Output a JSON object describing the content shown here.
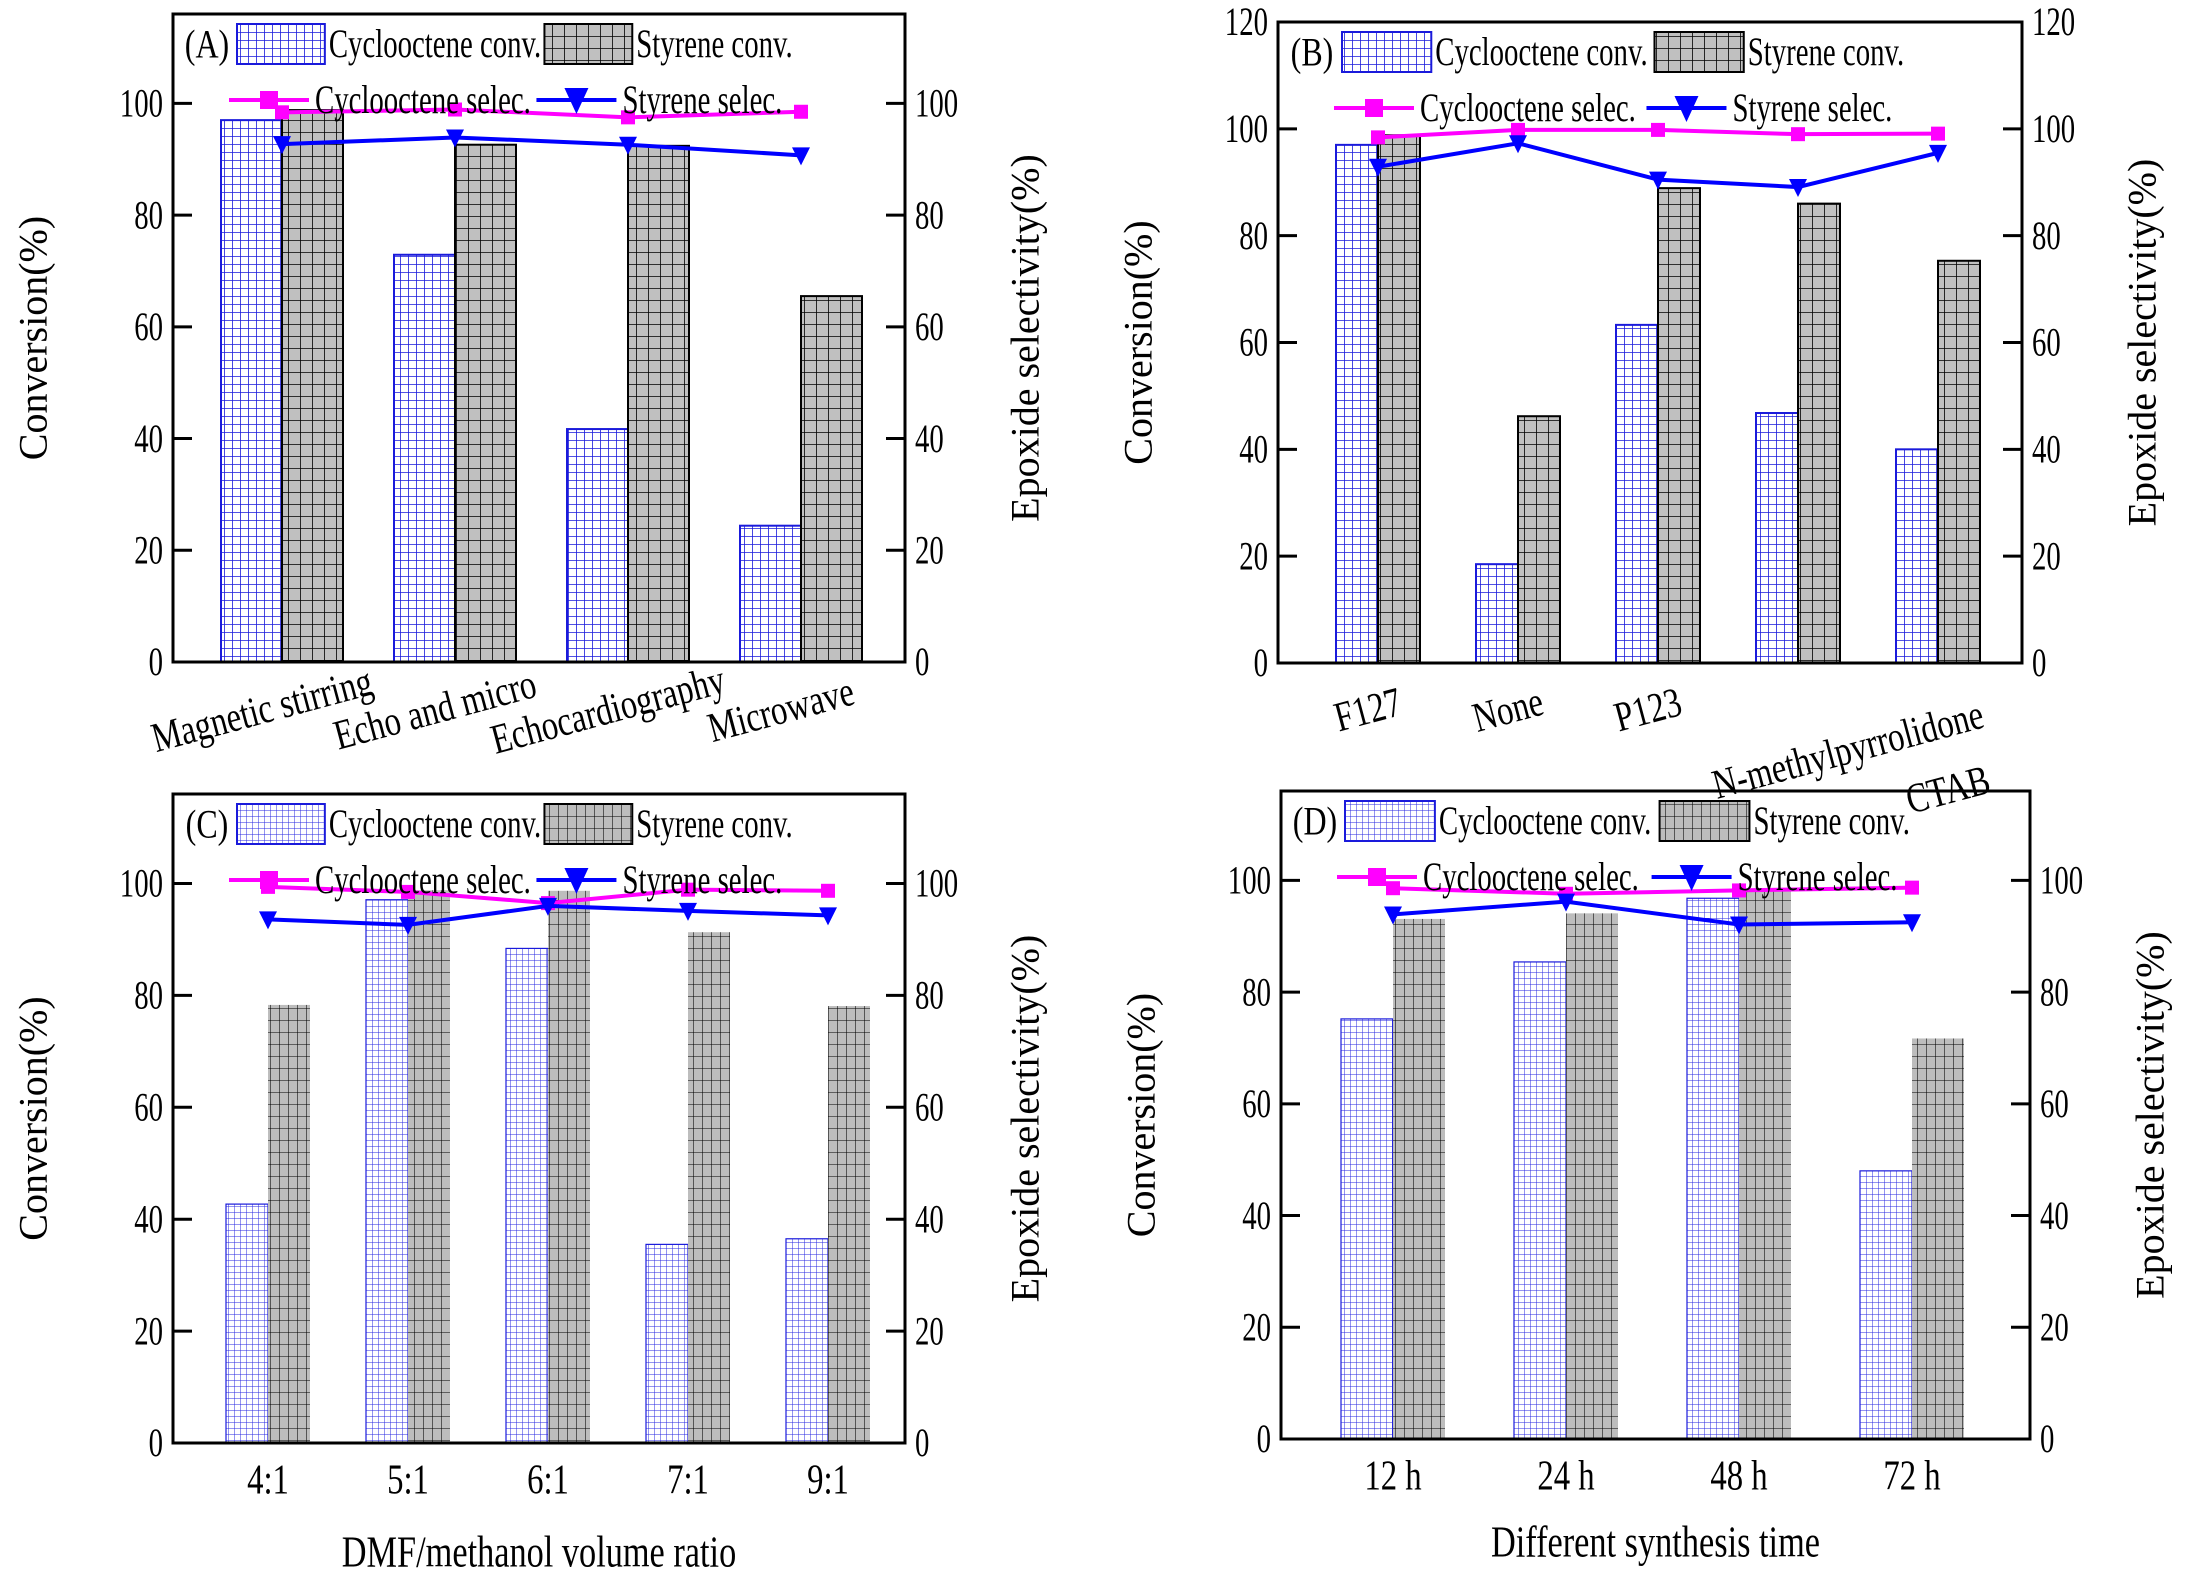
{
  "legend": {
    "cyclo_conv": "Cyclooctene conv.",
    "styrene_conv": "Styrene conv.",
    "cyclo_selec": "Cyclooctene selec.",
    "styrene_selec": "Styrene selec."
  },
  "colors": {
    "cyclo_conv_grid": "#1a1adb",
    "cyclo_conv_fill": "#ffffff",
    "styrene_conv_grid": "#000000",
    "styrene_conv_fill": "#c0c0c0",
    "cyclo_selec": "#ff00ff",
    "styrene_selec": "#0000ff"
  },
  "chart_data": [
    {
      "panel": "(A)",
      "type": "bar",
      "title": "",
      "xlabel": "",
      "ylabel": "Conversion(%)",
      "y2label": "Epoxide selectivity(%)",
      "ylim": [
        0,
        116
      ],
      "y2lim": [
        0,
        116
      ],
      "yticks": [
        0,
        20,
        40,
        60,
        80,
        100
      ],
      "y2ticks": [
        0,
        20,
        40,
        60,
        80,
        100
      ],
      "legend": "top",
      "grid": false,
      "categories": [
        "Magnetic stirring",
        "Echo and micro",
        "Echocardiography",
        "Microwave"
      ],
      "categories_rotated": true,
      "series": [
        {
          "name": "Cyclooctene conv.",
          "kind": "bar",
          "axis": "left",
          "values": [
            97.0,
            72.9,
            41.7,
            24.4
          ]
        },
        {
          "name": "Styrene conv.",
          "kind": "bar",
          "axis": "left",
          "values": [
            98.8,
            92.6,
            92.4,
            65.5
          ]
        },
        {
          "name": "Cyclooctene selec.",
          "kind": "line",
          "marker": "square",
          "axis": "right",
          "values": [
            98.4,
            98.9,
            97.5,
            98.5
          ]
        },
        {
          "name": "Styrene selec.",
          "kind": "line",
          "marker": "triangle-down",
          "axis": "right",
          "values": [
            92.7,
            93.9,
            92.6,
            90.7
          ]
        }
      ]
    },
    {
      "panel": "(B)",
      "type": "bar",
      "title": "",
      "xlabel": "",
      "ylabel": "Conversion(%)",
      "y2label": "Epoxide selectivity(%)",
      "ylim": [
        0,
        120
      ],
      "y2lim": [
        0,
        120
      ],
      "yticks": [
        0,
        20,
        40,
        60,
        80,
        100,
        120
      ],
      "y2ticks": [
        0,
        20,
        40,
        60,
        80,
        100,
        120
      ],
      "legend": "top",
      "grid": false,
      "categories": [
        "F127",
        "None",
        "P123",
        "N-methylpyrrolidone",
        "CTAB"
      ],
      "categories_rotated": true,
      "series": [
        {
          "name": "Cyclooctene conv.",
          "kind": "bar",
          "axis": "left",
          "values": [
            97.0,
            18.5,
            63.3,
            46.8,
            40.0
          ]
        },
        {
          "name": "Styrene conv.",
          "kind": "bar",
          "axis": "left",
          "values": [
            98.8,
            46.2,
            88.9,
            86.0,
            75.3
          ]
        },
        {
          "name": "Cyclooctene selec.",
          "kind": "line",
          "marker": "square",
          "axis": "right",
          "values": [
            98.4,
            99.8,
            99.8,
            99.0,
            99.1
          ]
        },
        {
          "name": "Styrene selec.",
          "kind": "line",
          "marker": "triangle-down",
          "axis": "right",
          "values": [
            92.9,
            97.3,
            90.5,
            89.1,
            95.5
          ]
        }
      ]
    },
    {
      "panel": "(C)",
      "type": "bar",
      "title": "",
      "xlabel": "DMF/methanol volume ratio",
      "ylabel": "Conversion(%)",
      "y2label": "Epoxide selectivity(%)",
      "ylim": [
        0,
        116
      ],
      "y2lim": [
        0,
        116
      ],
      "yticks": [
        0,
        20,
        40,
        60,
        80,
        100
      ],
      "y2ticks": [
        0,
        20,
        40,
        60,
        80,
        100
      ],
      "legend": "top",
      "grid": false,
      "categories": [
        "4:1",
        "5:1",
        "6:1",
        "7:1",
        "9:1"
      ],
      "categories_rotated": false,
      "series": [
        {
          "name": "Cyclooctene conv.",
          "kind": "bar",
          "axis": "left",
          "values": [
            42.7,
            97.1,
            88.4,
            35.5,
            36.5
          ]
        },
        {
          "name": "Styrene conv.",
          "kind": "bar",
          "axis": "left",
          "values": [
            78.3,
            98.8,
            98.7,
            91.3,
            78.1
          ]
        },
        {
          "name": "Cyclooctene selec.",
          "kind": "line",
          "marker": "square",
          "axis": "right",
          "values": [
            99.4,
            98.5,
            96.5,
            98.9,
            98.7
          ]
        },
        {
          "name": "Styrene selec.",
          "kind": "line",
          "marker": "triangle-down",
          "axis": "right",
          "values": [
            93.6,
            92.6,
            96.0,
            95.1,
            94.3
          ]
        }
      ]
    },
    {
      "panel": "(D)",
      "type": "bar",
      "title": "",
      "xlabel": "Different synthesis time",
      "ylabel": "Conversion(%)",
      "y2label": "Epoxide selectivity(%)",
      "ylim": [
        0,
        116
      ],
      "y2lim": [
        0,
        116
      ],
      "yticks": [
        0,
        20,
        40,
        60,
        80,
        100
      ],
      "y2ticks": [
        0,
        20,
        40,
        60,
        80,
        100
      ],
      "legend": "top",
      "grid": false,
      "categories": [
        "12 h",
        "24 h",
        "48 h",
        "72 h"
      ],
      "categories_rotated": false,
      "series": [
        {
          "name": "Cyclooctene conv.",
          "kind": "bar",
          "axis": "left",
          "values": [
            75.2,
            85.4,
            96.8,
            48.0
          ]
        },
        {
          "name": "Styrene conv.",
          "kind": "bar",
          "axis": "left",
          "values": [
            93.1,
            94.1,
            98.2,
            71.7
          ]
        },
        {
          "name": "Cyclooctene selec.",
          "kind": "line",
          "marker": "square",
          "axis": "right",
          "values": [
            98.6,
            97.6,
            98.2,
            98.7
          ]
        },
        {
          "name": "Styrene selec.",
          "kind": "line",
          "marker": "triangle-down",
          "axis": "right",
          "values": [
            93.9,
            96.2,
            92.1,
            92.5
          ]
        }
      ]
    }
  ]
}
